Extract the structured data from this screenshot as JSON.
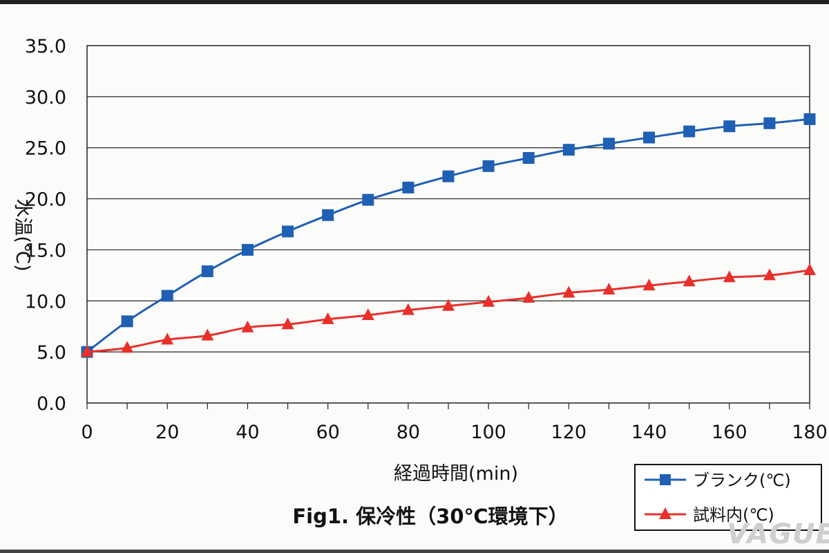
{
  "chart_data": {
    "type": "line",
    "title": "Fig1. 保冷性（30℃環境下）",
    "xlabel": "経過時間(min)",
    "ylabel": "水温(℃)",
    "x": [
      0,
      10,
      20,
      30,
      40,
      50,
      60,
      70,
      80,
      90,
      100,
      110,
      120,
      130,
      140,
      150,
      160,
      170,
      180
    ],
    "xticks": [
      "0",
      "20",
      "40",
      "60",
      "80",
      "100",
      "120",
      "140",
      "160",
      "180"
    ],
    "yticks": [
      "0.0",
      "5.0",
      "10.0",
      "15.0",
      "20.0",
      "25.0",
      "30.0",
      "35.0"
    ],
    "xlim": [
      0,
      180
    ],
    "ylim": [
      0,
      35
    ],
    "grid": true,
    "legend_position": "bottom-right",
    "series": [
      {
        "name": "ブランク(℃)",
        "color": "#1f5fb4",
        "marker": "square",
        "values": [
          5.0,
          8.0,
          10.5,
          12.9,
          15.0,
          16.8,
          18.4,
          19.9,
          21.1,
          22.2,
          23.2,
          24.0,
          24.8,
          25.4,
          26.0,
          26.6,
          27.1,
          27.4,
          27.8
        ]
      },
      {
        "name": "試料内(℃)",
        "color": "#e8302a",
        "marker": "triangle",
        "values": [
          5.0,
          5.4,
          6.2,
          6.6,
          7.4,
          7.7,
          8.2,
          8.6,
          9.1,
          9.5,
          9.9,
          10.3,
          10.8,
          11.1,
          11.5,
          11.9,
          12.3,
          12.5,
          13.0
        ]
      }
    ]
  },
  "watermark": "VAGUE"
}
